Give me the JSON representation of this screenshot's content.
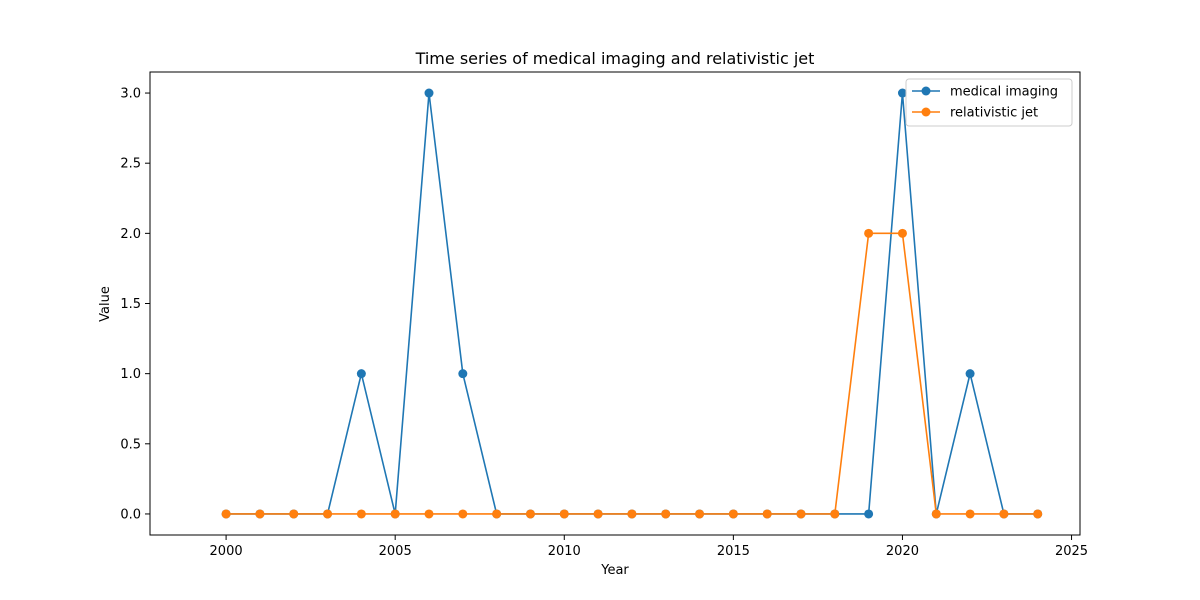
{
  "chart_data": {
    "type": "line",
    "title": "Time series of medical imaging and relativistic jet",
    "xlabel": "Year",
    "ylabel": "Value",
    "xlim": [
      1997.75,
      2025.25
    ],
    "ylim": [
      -0.15,
      3.15
    ],
    "x_ticks": [
      2000,
      2005,
      2010,
      2015,
      2020,
      2025
    ],
    "y_ticks": [
      0.0,
      0.5,
      1.0,
      1.5,
      2.0,
      2.5,
      3.0
    ],
    "legend_position": "top-right",
    "grid": false,
    "x": [
      2000,
      2001,
      2002,
      2003,
      2004,
      2005,
      2006,
      2007,
      2008,
      2009,
      2010,
      2011,
      2012,
      2013,
      2014,
      2015,
      2016,
      2017,
      2018,
      2019,
      2020,
      2021,
      2022,
      2023,
      2024
    ],
    "series": [
      {
        "name": "medical imaging",
        "color": "#1f77b4",
        "values": [
          0,
          0,
          0,
          0,
          1,
          0,
          3,
          1,
          0,
          0,
          0,
          0,
          0,
          0,
          0,
          0,
          0,
          0,
          0,
          0,
          3,
          0,
          1,
          0,
          0
        ]
      },
      {
        "name": "relativistic jet",
        "color": "#ff7f0e",
        "values": [
          0,
          0,
          0,
          0,
          0,
          0,
          0,
          0,
          0,
          0,
          0,
          0,
          0,
          0,
          0,
          0,
          0,
          0,
          0,
          2,
          2,
          0,
          0,
          0,
          0
        ]
      }
    ]
  }
}
